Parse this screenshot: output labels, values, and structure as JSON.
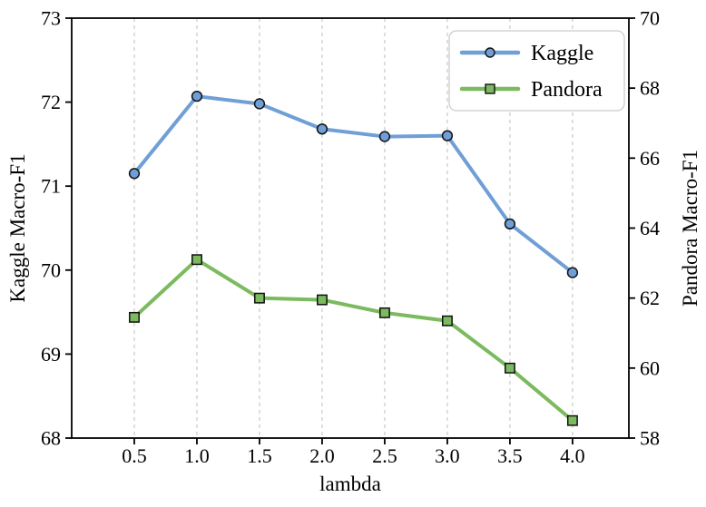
{
  "chart_data": {
    "type": "line",
    "title": "",
    "xlabel": "lambda",
    "ylabel_left": "Kaggle Macro-F1",
    "ylabel_right": "Pandora Macro-F1",
    "x": [
      0.5,
      1.0,
      1.5,
      2.0,
      2.5,
      3.0,
      3.5,
      4.0
    ],
    "series": [
      {
        "name": "Kaggle",
        "axis": "left",
        "marker": "circle",
        "color": "#6f9fd6",
        "values": [
          71.15,
          72.07,
          71.98,
          71.68,
          71.59,
          71.6,
          70.55,
          69.97
        ]
      },
      {
        "name": "Pandora",
        "axis": "right",
        "marker": "square",
        "color": "#7bba5f",
        "values": [
          61.45,
          63.1,
          62.0,
          61.95,
          61.58,
          61.35,
          60.0,
          58.5
        ]
      }
    ],
    "xlim": [
      0.0,
      4.45
    ],
    "ylim_left": [
      68,
      73
    ],
    "ylim_right": [
      58,
      70
    ],
    "xticks": [
      0.5,
      1.0,
      1.5,
      2.0,
      2.5,
      3.0,
      3.5,
      4.0
    ],
    "xtick_labels": [
      "0.5",
      "1.0",
      "1.5",
      "2.0",
      "2.5",
      "3.0",
      "3.5",
      "4.0"
    ],
    "yticks_left": [
      68,
      69,
      70,
      71,
      72,
      73
    ],
    "ytick_labels_left": [
      "68",
      "69",
      "70",
      "71",
      "72",
      "73"
    ],
    "yticks_right": [
      58,
      60,
      62,
      64,
      66,
      68,
      70
    ],
    "ytick_labels_right": [
      "58",
      "60",
      "62",
      "64",
      "66",
      "68",
      "70"
    ],
    "grid": {
      "vertical_dashed": true,
      "horizontal": false,
      "color": "#c4c4c4"
    },
    "legend": {
      "position": "upper-right",
      "entries": [
        "Kaggle",
        "Pandora"
      ]
    }
  },
  "style_colors": {
    "kaggle_line": "#6f9fd6",
    "pandora_line": "#7bba5f",
    "marker_edge": "#111111",
    "frame": "#000000",
    "gridline": "#c4c4c4",
    "legend_border": "#cccccc",
    "legend_background": "#ffffff"
  }
}
